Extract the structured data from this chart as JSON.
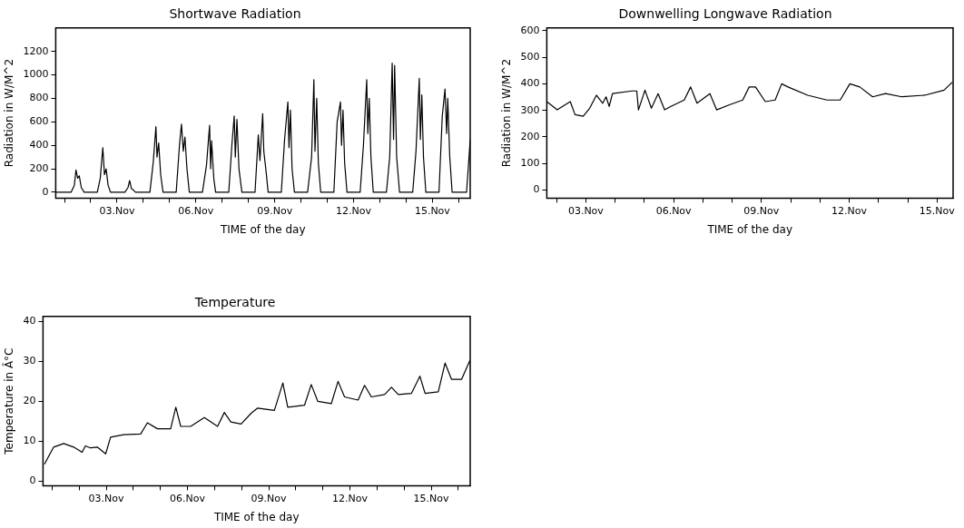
{
  "chart_data": [
    {
      "type": "line",
      "title": "Shortwave Radiation",
      "xlabel": "TIME of the day",
      "ylabel": "Radiation in W/M^2",
      "color": "#000000",
      "x": [
        "--10-31T16:00",
        "--11-01T06:00",
        "--11-01T09:00",
        "--11-01T10:30",
        "--11-01T12:00",
        "--11-01T13:30",
        "--11-01T15:20",
        "--11-01T18:00",
        "--11-02T06:00",
        "--11-02T08:40",
        "--11-02T11:00",
        "--11-02T12:30",
        "--11-02T14:00",
        "--11-02T15:50",
        "--11-02T18:00",
        "--11-03T07:10",
        "--11-03T10:00",
        "--11-03T11:30",
        "--11-03T13:10",
        "--11-03T14:50",
        "--11-03T16:50",
        "--11-04T06:00",
        "--11-04T09:00",
        "--11-04T11:30",
        "--11-04T12:30",
        "--11-04T14:00",
        "--11-04T15:50",
        "--11-04T18:00",
        "--11-05T06:00",
        "--11-05T09:00",
        "--11-05T10:50",
        "--11-05T12:30",
        "--11-05T14:00",
        "--11-05T15:50",
        "--11-05T18:00",
        "--11-06T06:00",
        "--11-06T09:40",
        "--11-06T12:30",
        "--11-06T13:30",
        "--11-06T14:20",
        "--11-06T16:20",
        "--11-06T18:00",
        "--11-07T06:00",
        "--11-07T09:00",
        "--11-07T11:00",
        "--11-07T12:00",
        "--11-07T13:30",
        "--11-07T15:20",
        "--11-07T18:00",
        "--11-08T06:00",
        "--11-08T09:00",
        "--11-08T10:30",
        "--11-08T13:00",
        "--11-08T14:00",
        "--11-08T15:50",
        "--11-08T18:00",
        "--11-09T06:00",
        "--11-09T09:00",
        "--11-09T12:00",
        "--11-09T13:00",
        "--11-09T14:20",
        "--11-09T15:50",
        "--11-09T18:00",
        "--11-10T06:00",
        "--11-10T09:40",
        "--11-10T11:45",
        "--11-10T12:45",
        "--11-10T14:20",
        "--11-10T15:50",
        "--11-10T18:00",
        "--11-11T06:00",
        "--11-11T09:00",
        "--11-11T12:00",
        "--11-11T13:00",
        "--11-11T14:20",
        "--11-11T15:50",
        "--11-11T18:00",
        "--11-12T06:00",
        "--11-12T09:00",
        "--11-12T12:00",
        "--11-12T13:00",
        "--11-12T14:20",
        "--11-12T15:50",
        "--11-12T18:00",
        "--11-13T06:00",
        "--11-13T09:00",
        "--11-13T11:15",
        "--11-13T12:30",
        "--11-13T13:30",
        "--11-13T15:20",
        "--11-13T18:00",
        "--11-14T06:00",
        "--11-14T09:00",
        "--11-14T12:00",
        "--11-14T13:00",
        "--11-14T14:20",
        "--11-14T15:50",
        "--11-14T18:00",
        "--11-15T06:00",
        "--11-15T09:00",
        "--11-15T11:30",
        "--11-15T13:00",
        "--11-15T14:00",
        "--11-15T15:50",
        "--11-15T18:00",
        "--11-16T07:10",
        "--11-16T10:30"
      ],
      "values": [
        0,
        0,
        60,
        190,
        120,
        140,
        40,
        0,
        0,
        120,
        380,
        150,
        200,
        60,
        0,
        0,
        40,
        100,
        30,
        20,
        0,
        0,
        250,
        560,
        300,
        420,
        150,
        0,
        0,
        400,
        580,
        350,
        470,
        200,
        0,
        0,
        230,
        570,
        200,
        440,
        120,
        0,
        0,
        420,
        650,
        300,
        620,
        200,
        0,
        0,
        490,
        270,
        670,
        350,
        200,
        0,
        0,
        450,
        770,
        380,
        700,
        200,
        0,
        0,
        300,
        960,
        350,
        800,
        250,
        0,
        0,
        600,
        770,
        400,
        700,
        250,
        0,
        0,
        400,
        960,
        500,
        800,
        300,
        0,
        0,
        300,
        1100,
        450,
        1080,
        300,
        0,
        0,
        350,
        970,
        450,
        830,
        300,
        0,
        0,
        650,
        880,
        500,
        800,
        300,
        0,
        0,
        450
      ],
      "xlim": [
        "--10-31T16:00",
        "--11-16T10:30"
      ],
      "xticks": [
        {
          "value": "--11-01",
          "label": null
        },
        {
          "value": "--11-02",
          "label": null
        },
        {
          "value": "--11-03",
          "label": "03.Nov"
        },
        {
          "value": "--11-04",
          "label": null
        },
        {
          "value": "--11-05",
          "label": null
        },
        {
          "value": "--11-06",
          "label": "06.Nov"
        },
        {
          "value": "--11-07",
          "label": null
        },
        {
          "value": "--11-08",
          "label": null
        },
        {
          "value": "--11-09",
          "label": "09.Nov"
        },
        {
          "value": "--11-10",
          "label": null
        },
        {
          "value": "--11-11",
          "label": null
        },
        {
          "value": "--11-12",
          "label": "12.Nov"
        },
        {
          "value": "--11-13",
          "label": null
        },
        {
          "value": "--11-14",
          "label": null
        },
        {
          "value": "--11-15",
          "label": "15.Nov"
        },
        {
          "value": "--11-16",
          "label": null
        }
      ],
      "ylim": [
        -50,
        1400
      ],
      "yticks": [
        0,
        200,
        400,
        600,
        800,
        1000,
        1200
      ]
    },
    {
      "type": "line",
      "title": "Downwelling Longwave Radiation",
      "xlabel": "TIME of the day",
      "ylabel": "Radiation in W/M^2",
      "color": "#000000",
      "x": [
        "--11-01T16:00",
        "--11-02T00:30",
        "--11-02T11:15",
        "--11-02T15:10",
        "--11-02T21:50",
        "--11-03T03:10",
        "--11-03T08:40",
        "--11-03T13:50",
        "--11-03T16:35",
        "--11-03T19:10",
        "--11-03T21:50",
        "--11-04T13:55",
        "--11-04T17:45",
        "--11-04T19:10",
        "--11-05T00:30",
        "--11-05T05:45",
        "--11-05T11:15",
        "--11-05T16:35",
        "--11-05T21:50",
        "--11-06T08:40",
        "--11-06T13:55",
        "--11-06T19:10",
        "--11-07T05:45",
        "--11-07T11:15",
        "--11-07T21:50",
        "--11-08T08:40",
        "--11-08T13:55",
        "--11-08T19:10",
        "--11-09T03:10",
        "--11-09T11:15",
        "--11-09T16:35",
        "--11-09T21:50",
        "--11-10T13:55",
        "--11-11T05:45",
        "--11-11T16:35",
        "--11-12T00:30",
        "--11-12T08:40",
        "--11-12T19:10",
        "--11-13T05:45",
        "--11-13T19:10",
        "--11-14T13:55",
        "--11-15T05:45",
        "--11-15T12:30"
      ],
      "values": [
        333,
        302,
        333,
        284,
        278,
        308,
        357,
        327,
        351,
        315,
        363,
        373,
        373,
        302,
        376,
        308,
        363,
        302,
        315,
        339,
        388,
        327,
        363,
        302,
        321,
        339,
        388,
        388,
        333,
        339,
        400,
        388,
        357,
        339,
        339,
        400,
        388,
        351,
        363,
        351,
        357,
        376,
        406
      ],
      "xlim": [
        "--11-01T16:00",
        "--11-15T13:10"
      ],
      "xticks": [
        {
          "value": "--11-02",
          "label": null
        },
        {
          "value": "--11-03",
          "label": "03.Nov"
        },
        {
          "value": "--11-04",
          "label": null
        },
        {
          "value": "--11-05",
          "label": null
        },
        {
          "value": "--11-06",
          "label": "06.Nov"
        },
        {
          "value": "--11-07",
          "label": null
        },
        {
          "value": "--11-08",
          "label": null
        },
        {
          "value": "--11-09",
          "label": "09.Nov"
        },
        {
          "value": "--11-10",
          "label": null
        },
        {
          "value": "--11-11",
          "label": null
        },
        {
          "value": "--11-12",
          "label": "12.Nov"
        },
        {
          "value": "--11-13",
          "label": null
        },
        {
          "value": "--11-14",
          "label": null
        },
        {
          "value": "--11-15",
          "label": "15.Nov"
        }
      ],
      "ylim": [
        -30,
        610
      ],
      "yticks": [
        0,
        100,
        200,
        300,
        400,
        500,
        600
      ]
    },
    {
      "type": "line",
      "title": "Temperature",
      "xlabel": "TIME of the day",
      "ylabel": "Temperature in Â°C",
      "color": "#000000",
      "x": [
        "--10-31T17:15",
        "--11-01T01:25",
        "--11-01T10:20",
        "--11-01T19:10",
        "--11-02T02:40",
        "--11-02T05:30",
        "--11-02T10:05",
        "--11-02T16:05",
        "--11-02T23:30",
        "--11-03T03:50",
        "--11-03T15:35",
        "--11-04T06:30",
        "--11-04T12:30",
        "--11-04T21:20",
        "--11-05T09:05",
        "--11-05T13:40",
        "--11-05T18:00",
        "--11-06T02:50",
        "--11-06T14:55",
        "--11-07T02:40",
        "--11-07T08:40",
        "--11-07T14:25",
        "--11-07T23:30",
        "--11-08T08:25",
        "--11-08T14:10",
        "--11-09T05:00",
        "--11-09T12:30",
        "--11-09T16:50",
        "--11-10T07:40",
        "--11-10T13:40",
        "--11-10T19:25",
        "--11-11T07:25",
        "--11-11T13:25",
        "--11-11T19:10",
        "--11-12T07:10",
        "--11-12T12:55",
        "--11-12T18:55",
        "--11-13T06:40",
        "--11-13T12:45",
        "--11-13T18:45",
        "--11-14T06:30",
        "--11-14T13:55",
        "--11-14T18:30",
        "--11-15T06:15",
        "--11-15T12:15",
        "--11-15T18:00",
        "--11-16T02:50",
        "--11-16T10:20"
      ],
      "values": [
        4.2,
        8.5,
        9.4,
        8.5,
        7.2,
        8.8,
        8.3,
        8.5,
        6.8,
        11,
        11.6,
        11.8,
        14.6,
        13.1,
        13.1,
        18.5,
        13.7,
        13.7,
        15.9,
        13.7,
        17.2,
        14.8,
        14.3,
        17,
        18.3,
        17.7,
        24.6,
        18.5,
        19,
        24.2,
        20,
        19.4,
        25,
        21.1,
        20.3,
        24,
        21.1,
        21.7,
        23.5,
        21.7,
        22,
        26.3,
        22,
        22.4,
        29.6,
        25.5,
        25.5,
        30.3
      ],
      "xlim": [
        "--10-31T16:00",
        "--11-16T10:30"
      ],
      "xticks": [
        {
          "value": "--11-01",
          "label": null
        },
        {
          "value": "--11-02",
          "label": null
        },
        {
          "value": "--11-03",
          "label": "03.Nov"
        },
        {
          "value": "--11-04",
          "label": null
        },
        {
          "value": "--11-05",
          "label": null
        },
        {
          "value": "--11-06",
          "label": "06.Nov"
        },
        {
          "value": "--11-07",
          "label": null
        },
        {
          "value": "--11-08",
          "label": null
        },
        {
          "value": "--11-09",
          "label": "09.Nov"
        },
        {
          "value": "--11-10",
          "label": null
        },
        {
          "value": "--11-11",
          "label": null
        },
        {
          "value": "--11-12",
          "label": "12.Nov"
        },
        {
          "value": "--11-13",
          "label": null
        },
        {
          "value": "--11-14",
          "label": null
        },
        {
          "value": "--11-15",
          "label": "15.Nov"
        },
        {
          "value": "--11-16",
          "label": null
        }
      ],
      "ylim": [
        -1.2,
        41.3
      ],
      "yticks": [
        0,
        10,
        20,
        30,
        40
      ]
    }
  ]
}
